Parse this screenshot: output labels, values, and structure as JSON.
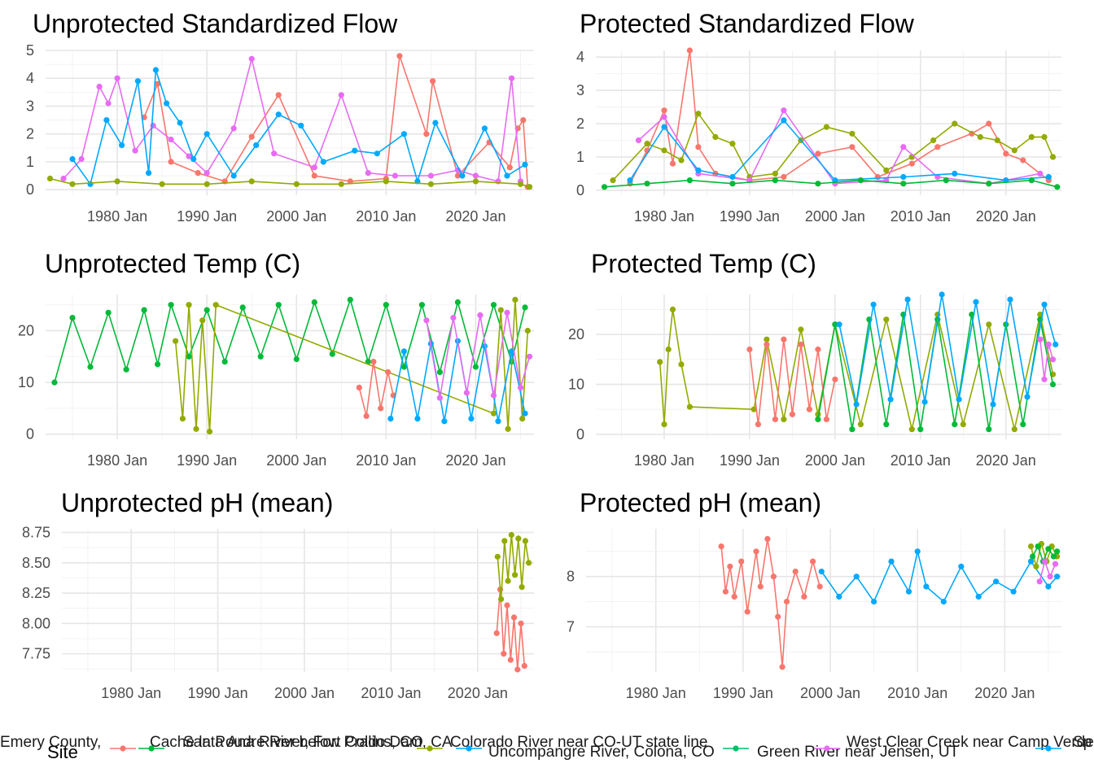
{
  "legend": {
    "title": "Site",
    "entries": [
      {
        "name": "Emery County,",
        "color": "#F8766D"
      },
      {
        "name": "Cache la Poudre River, Fort Collins, CO",
        "color": "#00BA38"
      },
      {
        "name": "Santa Ana River below Prado Dam, CA",
        "color": "#93AA00"
      },
      {
        "name": "Colorado River near CO-UT state line",
        "color": "#93AA00"
      },
      {
        "name": "Uncompangre River, Colona, CO",
        "color": "#00A9FF"
      },
      {
        "name": "Green River near Jensen, UT",
        "color": "#00BE67"
      },
      {
        "name": "West Clear Creek near Camp Verde, AZ",
        "color": "#E76BF3"
      },
      {
        "name": "Sp Te",
        "color": "#00A9FF"
      }
    ]
  },
  "colors": {
    "red": "#F8766D",
    "olive": "#93AA00",
    "green": "#00BA38",
    "teal": "#00BE67",
    "blue": "#00A9FF",
    "magenta": "#E76BF3"
  },
  "chart_data": [
    {
      "type": "line",
      "title": "Unprotected Standardized Flow",
      "x_ticks": [
        "1980 Jan",
        "1990 Jan",
        "2000 Jan",
        "2010 Jan",
        "2020 Jan"
      ],
      "y_ticks": [
        0,
        1,
        2,
        3,
        4,
        5
      ],
      "xlim": [
        1972.0,
        2026.5
      ],
      "ylim": [
        -0.2,
        5.0
      ],
      "series": [
        {
          "color": "red",
          "x": [
            1983.0,
            1984.5,
            1986.0,
            1989.0,
            1992.0,
            1995.0,
            1998.0,
            2002.0,
            2006.0,
            2010.0,
            2011.5,
            2014.5,
            2015.2,
            2018.0,
            2021.5,
            2023.8,
            2024.7,
            2025.3,
            2025.8
          ],
          "y": [
            2.6,
            3.8,
            1.0,
            0.6,
            0.3,
            1.9,
            3.4,
            0.5,
            0.3,
            0.4,
            4.8,
            2.0,
            3.9,
            0.5,
            1.7,
            0.8,
            2.2,
            2.5,
            0.1
          ]
        },
        {
          "color": "magenta",
          "x": [
            1974.0,
            1976.0,
            1978.0,
            1979.0,
            1980.0,
            1982.0,
            1984.0,
            1986.0,
            1988.0,
            1990.0,
            1993.0,
            1995.0,
            1997.5,
            2002.0,
            2005.0,
            2008.0,
            2011.0,
            2015.0,
            2018.0,
            2020.0,
            2022.5,
            2024.0,
            2025.0
          ],
          "y": [
            0.4,
            1.1,
            3.7,
            3.1,
            4.0,
            1.4,
            2.3,
            1.8,
            1.2,
            0.6,
            2.2,
            4.7,
            1.3,
            0.8,
            3.4,
            0.6,
            0.5,
            0.5,
            0.7,
            0.5,
            0.3,
            4.0,
            0.3
          ]
        },
        {
          "color": "blue",
          "x": [
            1975.0,
            1977.0,
            1978.8,
            1980.5,
            1982.3,
            1983.5,
            1984.3,
            1985.5,
            1987.0,
            1988.5,
            1990.0,
            1993.0,
            1995.5,
            1998.0,
            2000.5,
            2003.0,
            2006.5,
            2009.0,
            2012.0,
            2013.5,
            2015.5,
            2018.5,
            2021.0,
            2023.5,
            2025.5
          ],
          "y": [
            1.1,
            0.2,
            2.5,
            1.6,
            3.9,
            0.6,
            4.3,
            3.1,
            2.4,
            1.1,
            2.0,
            0.5,
            1.6,
            2.7,
            2.3,
            1.0,
            1.4,
            1.3,
            2.0,
            0.3,
            2.4,
            0.5,
            2.2,
            0.5,
            0.9
          ]
        },
        {
          "color": "olive",
          "x": [
            1972.5,
            1975.0,
            1980.0,
            1985.0,
            1990.0,
            1995.0,
            2000.0,
            2005.0,
            2010.0,
            2015.0,
            2020.0,
            2025.0,
            2026.0
          ],
          "y": [
            0.4,
            0.2,
            0.3,
            0.2,
            0.2,
            0.3,
            0.2,
            0.2,
            0.3,
            0.2,
            0.3,
            0.2,
            0.1
          ]
        }
      ]
    },
    {
      "type": "line",
      "title": "Protected Standardized Flow",
      "x_ticks": [
        "1980 Jan",
        "1990 Jan",
        "2000 Jan",
        "2010 Jan",
        "2020 Jan"
      ],
      "y_ticks": [
        0,
        1,
        2,
        3,
        4
      ],
      "xlim": [
        1972.0,
        2026.5
      ],
      "ylim": [
        -0.15,
        4.2
      ],
      "series": [
        {
          "color": "red",
          "x": [
            1976.0,
            1978.0,
            1980.0,
            1981.0,
            1983.0,
            1984.0,
            1986.0,
            1990.0,
            1994.0,
            1998.0,
            2002.0,
            2005.0,
            2009.0,
            2012.0,
            2016.0,
            2018.0,
            2020.0,
            2022.0,
            2025.0
          ],
          "y": [
            0.2,
            1.2,
            2.4,
            0.8,
            4.2,
            1.3,
            0.5,
            0.3,
            0.4,
            1.1,
            1.3,
            0.4,
            0.8,
            1.3,
            1.7,
            2.0,
            1.1,
            0.9,
            0.3
          ]
        },
        {
          "color": "olive",
          "x": [
            1974.0,
            1978.0,
            1980.0,
            1982.0,
            1984.0,
            1986.0,
            1988.0,
            1990.0,
            1993.0,
            1996.0,
            1999.0,
            2002.0,
            2006.0,
            2009.0,
            2011.5,
            2014.0,
            2017.0,
            2019.0,
            2021.0,
            2023.0,
            2024.5,
            2025.5
          ],
          "y": [
            0.3,
            1.4,
            1.2,
            0.9,
            2.3,
            1.6,
            1.4,
            0.4,
            0.5,
            1.5,
            1.9,
            1.7,
            0.6,
            1.0,
            1.5,
            2.0,
            1.6,
            1.5,
            1.2,
            1.6,
            1.6,
            1.0
          ]
        },
        {
          "color": "magenta",
          "x": [
            1977.0,
            1980.0,
            1984.0,
            1990.0,
            1994.0,
            2000.0,
            2006.0,
            2008.0,
            2012.0,
            2018.0,
            2024.0
          ],
          "y": [
            1.5,
            2.2,
            0.5,
            0.3,
            2.4,
            0.2,
            0.3,
            1.3,
            0.4,
            0.2,
            0.5
          ]
        },
        {
          "color": "blue",
          "x": [
            1976.0,
            1980.0,
            1984.0,
            1988.0,
            1994.0,
            2000.0,
            2008.0,
            2014.0,
            2020.0,
            2025.0
          ],
          "y": [
            0.3,
            1.9,
            0.6,
            0.4,
            2.1,
            0.3,
            0.4,
            0.5,
            0.3,
            0.4
          ]
        },
        {
          "color": "green",
          "x": [
            1973.0,
            1978.0,
            1983.0,
            1988.0,
            1993.0,
            1998.0,
            2003.0,
            2008.0,
            2013.0,
            2018.0,
            2023.0,
            2026.0
          ],
          "y": [
            0.1,
            0.2,
            0.3,
            0.2,
            0.3,
            0.2,
            0.3,
            0.2,
            0.3,
            0.2,
            0.3,
            0.1
          ]
        }
      ]
    },
    {
      "type": "line",
      "title": "Unprotected Temp (C)",
      "x_ticks": [
        "1980 Jan",
        "1990 Jan",
        "2000 Jan",
        "2010 Jan",
        "2020 Jan"
      ],
      "y_ticks": [
        0,
        10,
        20
      ],
      "xlim": [
        1972.0,
        2026.5
      ],
      "ylim": [
        -1.0,
        27.0
      ],
      "series": [
        {
          "color": "green",
          "x": [
            1973.0,
            1975.0,
            1977.0,
            1979.0,
            1981.0,
            1983.0,
            1984.5,
            1986.0,
            1988.0,
            1990.0,
            1992.0,
            1994.0,
            1996.0,
            1998.0,
            2000.0,
            2002.0,
            2004.0,
            2006.0,
            2008.0,
            2010.0,
            2012.0,
            2014.0,
            2016.0,
            2018.0,
            2020.0,
            2022.0,
            2024.0,
            2025.5
          ],
          "y": [
            10.0,
            22.5,
            13.0,
            23.5,
            12.5,
            24.0,
            13.5,
            25.0,
            15.0,
            24.0,
            14.0,
            24.5,
            15.0,
            25.0,
            14.5,
            25.5,
            15.5,
            26.0,
            14.0,
            25.0,
            13.0,
            25.0,
            12.0,
            25.5,
            13.0,
            25.0,
            14.0,
            24.5
          ]
        },
        {
          "color": "olive",
          "x": [
            1986.5,
            1987.3,
            1988.0,
            1988.8,
            1989.5,
            1990.3,
            1991.0,
            2022.0,
            2022.8,
            2023.6,
            2024.4,
            2025.2,
            2025.8
          ],
          "y": [
            18.0,
            3.0,
            25.0,
            1.0,
            22.0,
            0.5,
            25.0,
            4.0,
            24.0,
            1.0,
            26.0,
            3.0,
            20.0
          ]
        },
        {
          "color": "red",
          "x": [
            2007.0,
            2007.8,
            2008.6,
            2009.4,
            2010.2,
            2010.8
          ],
          "y": [
            9.0,
            3.5,
            14.0,
            5.0,
            12.0,
            7.5
          ]
        },
        {
          "color": "blue",
          "x": [
            2010.5,
            2012.0,
            2013.5,
            2015.0,
            2016.5,
            2018.0,
            2019.5,
            2021.0,
            2022.5,
            2024.0,
            2025.5
          ],
          "y": [
            3.0,
            16.0,
            3.0,
            17.5,
            2.5,
            18.0,
            3.0,
            17.0,
            2.5,
            16.0,
            4.0
          ]
        },
        {
          "color": "magenta",
          "x": [
            2014.5,
            2016.0,
            2017.5,
            2019.0,
            2020.5,
            2022.0,
            2023.5,
            2025.0,
            2026.0
          ],
          "y": [
            22.0,
            7.0,
            22.5,
            8.0,
            23.0,
            7.5,
            23.5,
            9.0,
            15.0
          ]
        }
      ]
    },
    {
      "type": "line",
      "title": "Protected Temp (C)",
      "x_ticks": [
        "1980 Jan",
        "1990 Jan",
        "2000 Jan",
        "2010 Jan",
        "2020 Jan"
      ],
      "y_ticks": [
        0,
        10,
        20
      ],
      "xlim": [
        1972.0,
        2026.5
      ],
      "ylim": [
        -1.0,
        28.0
      ],
      "series": [
        {
          "color": "olive",
          "x": [
            1979.5,
            1980.0,
            1980.5,
            1981.0,
            1982.0,
            1983.0,
            1990.5,
            1992.0,
            1994.0,
            1996.0,
            1998.0,
            2000.0,
            2003.0,
            2006.0,
            2009.0,
            2012.0,
            2015.0,
            2018.0,
            2021.0,
            2024.0,
            2025.5
          ],
          "y": [
            14.5,
            2.0,
            17.0,
            25.0,
            14.0,
            5.5,
            5.0,
            19.0,
            3.0,
            21.0,
            4.0,
            22.0,
            2.0,
            23.0,
            1.0,
            24.0,
            2.0,
            22.0,
            1.0,
            24.0,
            12.0
          ]
        },
        {
          "color": "red",
          "x": [
            1990.0,
            1991.0,
            1992.0,
            1993.0,
            1994.0,
            1995.0,
            1996.0,
            1997.0,
            1998.0,
            1999.0,
            2000.0
          ],
          "y": [
            17.0,
            2.0,
            18.0,
            3.0,
            19.0,
            4.0,
            18.0,
            5.0,
            17.0,
            3.0,
            11.0
          ]
        },
        {
          "color": "green",
          "x": [
            1998.0,
            2000.0,
            2002.0,
            2004.0,
            2006.0,
            2008.0,
            2010.0,
            2012.0,
            2014.0,
            2016.0,
            2018.0,
            2020.0,
            2022.0,
            2024.0,
            2025.5
          ],
          "y": [
            3.0,
            22.0,
            1.0,
            23.0,
            2.0,
            24.0,
            1.0,
            23.0,
            2.0,
            24.0,
            1.0,
            22.0,
            2.0,
            23.0,
            10.0
          ]
        },
        {
          "color": "blue",
          "x": [
            2000.5,
            2002.5,
            2004.5,
            2006.5,
            2008.5,
            2010.5,
            2012.5,
            2014.5,
            2016.5,
            2018.5,
            2020.5,
            2022.5,
            2024.5,
            2025.8
          ],
          "y": [
            22.0,
            6.0,
            26.0,
            7.0,
            27.0,
            6.5,
            28.0,
            7.0,
            26.5,
            6.0,
            27.0,
            7.5,
            26.0,
            18.0
          ]
        },
        {
          "color": "magenta",
          "x": [
            2024.0,
            2024.5,
            2025.0,
            2025.5
          ],
          "y": [
            19.0,
            11.0,
            18.0,
            15.0
          ]
        }
      ]
    },
    {
      "type": "line",
      "title": "Unprotected pH (mean)",
      "x_ticks": [
        "1980 Jan",
        "1990 Jan",
        "2000 Jan",
        "2010 Jan",
        "2020 Jan"
      ],
      "y_ticks": [
        "7.75",
        "8.00",
        "8.25",
        "8.50",
        "8.75"
      ],
      "xlim": [
        1972.0,
        2026.5
      ],
      "ylim": [
        7.6,
        8.78
      ],
      "series": [
        {
          "color": "red",
          "x": [
            2022.2,
            2022.6,
            2023.0,
            2023.4,
            2023.8,
            2024.2,
            2024.6,
            2025.0,
            2025.4
          ],
          "y": [
            7.92,
            8.28,
            7.75,
            8.15,
            7.7,
            8.05,
            7.62,
            8.0,
            7.65
          ]
        },
        {
          "color": "olive",
          "x": [
            2022.3,
            2022.7,
            2023.1,
            2023.5,
            2023.9,
            2024.3,
            2024.7,
            2025.1,
            2025.5,
            2025.9
          ],
          "y": [
            8.55,
            8.2,
            8.68,
            8.35,
            8.73,
            8.4,
            8.7,
            8.3,
            8.68,
            8.5
          ]
        }
      ]
    },
    {
      "type": "line",
      "title": "Protected pH (mean)",
      "x_ticks": [
        "1980 Jan",
        "1990 Jan",
        "2000 Jan",
        "2010 Jan",
        "2020 Jan"
      ],
      "y_ticks": [
        7,
        8
      ],
      "xlim": [
        1972.0,
        2026.5
      ],
      "ylim": [
        6.1,
        8.95
      ],
      "series": [
        {
          "color": "red",
          "x": [
            1987.5,
            1988.0,
            1988.5,
            1989.0,
            1989.8,
            1990.5,
            1991.5,
            1992.0,
            1992.8,
            1993.5,
            1994.0,
            1994.5,
            1995.0,
            1996.0,
            1997.0,
            1998.0,
            1998.8
          ],
          "y": [
            8.6,
            7.7,
            8.2,
            7.6,
            8.3,
            7.3,
            8.5,
            7.8,
            8.75,
            8.0,
            7.2,
            6.2,
            7.5,
            8.1,
            7.6,
            8.3,
            7.8
          ]
        },
        {
          "color": "blue",
          "x": [
            1999.0,
            2001.0,
            2003.0,
            2005.0,
            2007.0,
            2009.0,
            2010.0,
            2011.0,
            2013.0,
            2015.0,
            2017.0,
            2019.0,
            2021.0,
            2023.0,
            2025.0,
            2026.0
          ],
          "y": [
            8.1,
            7.6,
            8.0,
            7.5,
            8.3,
            7.7,
            8.5,
            7.8,
            7.5,
            8.2,
            7.6,
            7.9,
            7.7,
            8.3,
            7.8,
            8.0
          ]
        },
        {
          "color": "olive",
          "x": [
            2023.0,
            2023.6,
            2024.2,
            2024.8,
            2025.4,
            2026.0
          ],
          "y": [
            8.6,
            8.2,
            8.65,
            8.3,
            8.6,
            8.4
          ]
        },
        {
          "color": "green",
          "x": [
            2023.2,
            2023.8,
            2024.4,
            2025.0,
            2025.6,
            2026.0
          ],
          "y": [
            8.4,
            8.6,
            8.3,
            8.55,
            8.4,
            8.5
          ]
        },
        {
          "color": "magenta",
          "x": [
            2024.0,
            2024.6,
            2025.2,
            2025.8
          ],
          "y": [
            7.9,
            8.3,
            8.0,
            8.25
          ]
        }
      ]
    }
  ]
}
